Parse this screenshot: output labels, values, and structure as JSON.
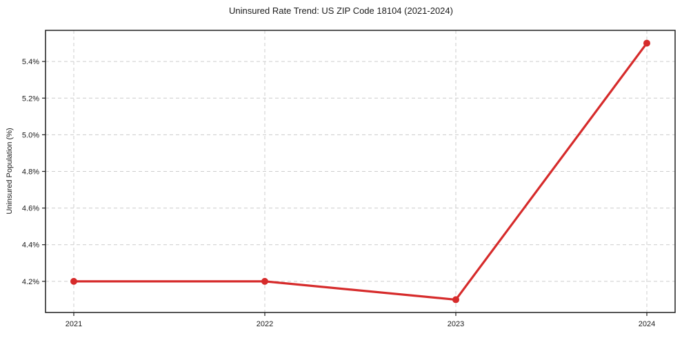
{
  "figure": {
    "background": "#ffffff"
  },
  "chart_data": {
    "type": "line",
    "title": "Uninsured Rate Trend: US ZIP Code 18104 (2021-2024)",
    "xlabel": "",
    "ylabel": "Uninsured Population (%)",
    "categories": [
      "2021",
      "2022",
      "2023",
      "2024"
    ],
    "values": [
      4.2,
      4.2,
      4.1,
      5.5
    ],
    "yticks": [
      4.2,
      4.4,
      4.6,
      4.8,
      5.0,
      5.2,
      5.4
    ],
    "ytick_labels": [
      "4.2%",
      "4.4%",
      "4.6%",
      "4.8%",
      "5.0%",
      "5.2%",
      "5.4%"
    ],
    "ylim": [
      4.03,
      5.57
    ],
    "grid": "both-dashed",
    "legend": "none",
    "colors": {
      "line": "#d62b2b",
      "marker": "#d62b2b",
      "grid": "#cccccc",
      "spine": "#1f1f1f",
      "text": "#1a1a1a"
    }
  }
}
